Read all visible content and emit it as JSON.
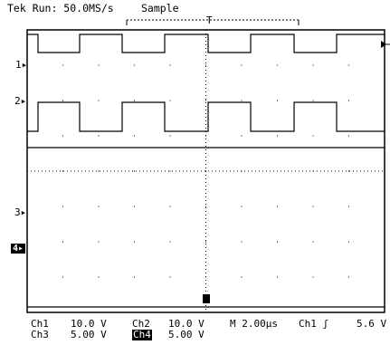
{
  "header": {
    "status": "Tek Run: 50.0MS/s",
    "mode": "Sample",
    "trigger_marker": "T"
  },
  "markers": {
    "ch1": "1",
    "ch2": "2",
    "ch3": "3",
    "ch4": "4"
  },
  "readouts": {
    "row1": [
      {
        "label": "Ch1",
        "value": "10.0 V"
      },
      {
        "label": "Ch2",
        "value": "10.0 V"
      },
      {
        "label": "M 2.00µs",
        "value": ""
      },
      {
        "label": "Ch1 ʃ",
        "value": "5.6 V"
      }
    ],
    "row2": [
      {
        "label": "Ch3",
        "value": "5.00 V"
      },
      {
        "label": "Ch4",
        "value": "5.00 V"
      }
    ]
  },
  "chart_data": {
    "type": "line",
    "title": "",
    "xlabel": "",
    "ylabel": "",
    "grid": true,
    "x_divisions": 10,
    "y_divisions": 8,
    "time_per_div": "2.00µs",
    "series": [
      {
        "name": "Ch1",
        "color": "#000000",
        "levels": [
          1,
          0,
          1,
          0,
          1,
          0,
          1,
          0,
          1
        ]
      },
      {
        "name": "Ch2",
        "color": "#000000",
        "levels": [
          0,
          1,
          0,
          1,
          0,
          1,
          0,
          1,
          0
        ]
      },
      {
        "name": "Ch3",
        "color": "#000000",
        "levels": [
          1
        ]
      },
      {
        "name": "Ch4",
        "color": "#000000",
        "levels": [
          0
        ]
      }
    ]
  }
}
